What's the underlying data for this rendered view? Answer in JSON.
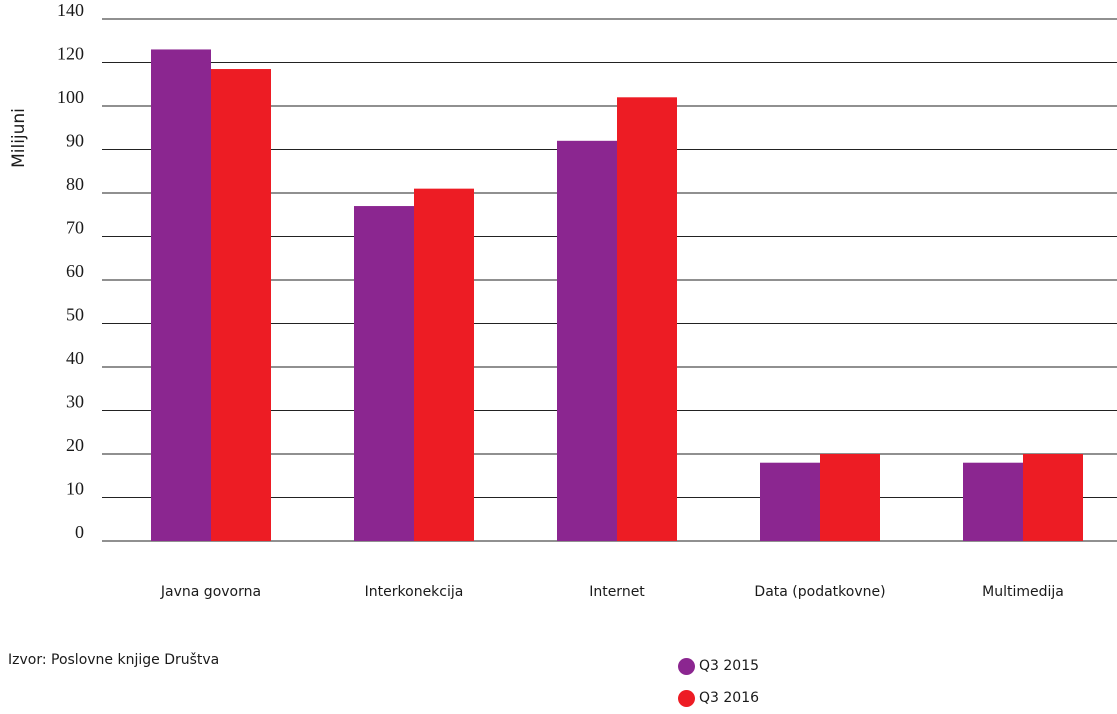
{
  "chart_data": {
    "type": "bar",
    "ylabel": "Milijuni",
    "yticks": [
      "0",
      "10",
      "20",
      "30",
      "40",
      "50",
      "60",
      "70",
      "80",
      "90",
      "100",
      "120",
      "140"
    ],
    "categories": [
      "Javna govorna",
      "Interkonekcija",
      "Internet",
      "Data (podatkovne)",
      "Multimedija"
    ],
    "series": [
      {
        "name": "Q3 2015",
        "color": "#8b2690",
        "values": [
          126,
          77,
          92,
          18,
          18
        ]
      },
      {
        "name": "Q3 2016",
        "color": "#ed1c24",
        "values": [
          117,
          81,
          104,
          20,
          20
        ]
      }
    ],
    "grid": true,
    "legend": "bottom-center"
  },
  "source": "Izvor: Poslovne knjige Društva"
}
